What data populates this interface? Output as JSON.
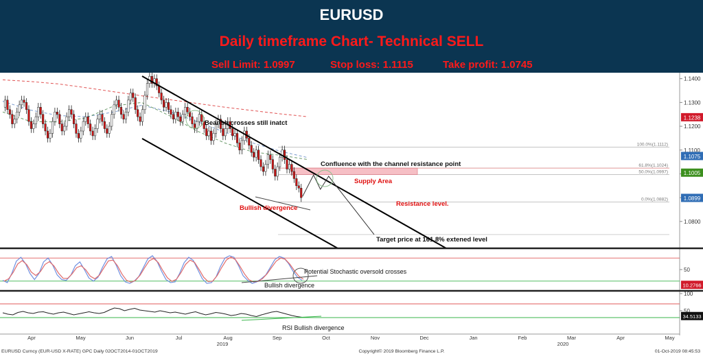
{
  "header": {
    "title": "EURUSD",
    "subtitle": "Daily timeframe Chart- Technical SELL",
    "sell_limit": "Sell Limit: 1.0997",
    "stop_loss": "Stop loss: 1.1115",
    "take_profit": "Take profit: 1.0745"
  },
  "colors": {
    "header_bg": "#0b3551",
    "header_title": "#ffffff",
    "header_red": "#ff1a1a",
    "bull_candle": "#ffffff",
    "bear_candle": "#d11414",
    "ma_red": "#e05050",
    "ma_blue": "#7799cc",
    "ma_green": "#6a9a6a",
    "supply_zone": "#f6b9bf",
    "tag_red": "#d11a2a",
    "tag_blue": "#2f6db5",
    "tag_green": "#3c8f1e",
    "stoch_k": "#6f8fe0",
    "stoch_d": "#e06a6a",
    "rsi_line": "#222222",
    "signal_green": "#39b54a"
  },
  "chart_data": [
    {
      "type": "candlestick",
      "timeframe": "Daily",
      "x": [
        "Apr",
        "May",
        "Jun",
        "Jul",
        "Aug",
        "Sep",
        "Oct",
        "Nov",
        "Dec",
        "Jan",
        "Feb",
        "Mar",
        "Apr",
        "May"
      ],
      "year_labels": [
        "2019",
        "2020"
      ],
      "ylim": [
        1.069,
        1.1425
      ],
      "yticks": [
        1.14,
        1.13,
        1.12,
        1.11,
        1.1,
        1.09,
        1.08
      ],
      "ytick_labels": [
        "1.1400",
        "1.1300",
        "1.1200",
        "1.1100",
        "1.1000",
        "1.0900",
        "1.0800"
      ],
      "close_series": [
        1.128,
        1.131,
        1.127,
        1.125,
        1.121,
        1.123,
        1.126,
        1.129,
        1.131,
        1.13,
        1.127,
        1.122,
        1.119,
        1.121,
        1.124,
        1.128,
        1.125,
        1.121,
        1.118,
        1.115,
        1.117,
        1.122,
        1.126,
        1.125,
        1.121,
        1.118,
        1.12,
        1.124,
        1.127,
        1.125,
        1.121,
        1.117,
        1.115,
        1.118,
        1.122,
        1.124,
        1.121,
        1.118,
        1.116,
        1.119,
        1.123,
        1.125,
        1.122,
        1.119,
        1.117,
        1.12,
        1.125,
        1.129,
        1.131,
        1.128,
        1.125,
        1.123,
        1.126,
        1.131,
        1.134,
        1.132,
        1.127,
        1.124,
        1.122,
        1.127,
        1.133,
        1.138,
        1.141,
        1.138,
        1.14,
        1.137,
        1.134,
        1.131,
        1.128,
        1.13,
        1.127,
        1.125,
        1.123,
        1.126,
        1.124,
        1.122,
        1.125,
        1.128,
        1.126,
        1.124,
        1.121,
        1.119,
        1.122,
        1.125,
        1.122,
        1.119,
        1.116,
        1.118,
        1.114,
        1.117,
        1.121,
        1.123,
        1.119,
        1.116,
        1.119,
        1.122,
        1.119,
        1.116,
        1.117,
        1.113,
        1.11,
        1.114,
        1.118,
        1.115,
        1.112,
        1.109,
        1.107,
        1.11,
        1.106,
        1.103,
        1.101,
        1.104,
        1.108,
        1.106,
        1.102,
        1.099,
        1.103,
        1.107,
        1.11,
        1.106,
        1.102,
        1.104,
        1.101,
        1.098,
        1.095,
        1.094,
        1.09
      ],
      "projection": [
        1.0905,
        1.0995,
        1.0935,
        1.099,
        1.0745
      ],
      "moving_averages": [
        {
          "color": "#e05050",
          "style": "dashed",
          "values": [
            1.1395,
            1.1388,
            1.1378,
            1.1362,
            1.1345,
            1.1328,
            1.1312,
            1.1296,
            1.128,
            1.1266,
            1.1252,
            1.124
          ]
        },
        {
          "color": "#7799cc",
          "style": "dashed",
          "values": [
            1.1305,
            1.1268,
            1.1245,
            1.124,
            1.126,
            1.1288,
            1.1262,
            1.122,
            1.1175,
            1.113,
            1.1095,
            1.1068
          ]
        },
        {
          "color": "#6a9a6a",
          "style": "dashed",
          "values": [
            1.126,
            1.122,
            1.1218,
            1.1235,
            1.1285,
            1.13,
            1.1245,
            1.118,
            1.113,
            1.1092,
            1.1078,
            1.106
          ]
        }
      ],
      "fib_levels": [
        {
          "label": "100.0%(1.1112)",
          "value": 1.1112
        },
        {
          "label": "61.8%(1.1024)",
          "value": 1.1024
        },
        {
          "label": "50.0%(1.0997)",
          "value": 1.0997
        },
        {
          "label": "0.0%(1.0882)",
          "value": 1.0882
        }
      ],
      "price_tags": [
        {
          "label": "1.1238",
          "value": 1.1238,
          "color": "#d11a2a"
        },
        {
          "label": "1.1075",
          "value": 1.1075,
          "color": "#2f6db5"
        },
        {
          "label": "1.1005",
          "value": 1.1005,
          "color": "#3c8f1e"
        },
        {
          "label": "1.0899",
          "value": 1.0899,
          "color": "#2f6db5"
        }
      ],
      "supply_zone": [
        1.0997,
        1.1024
      ],
      "target_level": 1.0745,
      "annotations": [
        "Bearish crosses still inatct",
        "Confluence with the channel resistance point",
        "Supply Area",
        "Resistance level.",
        "Bullish divergence",
        "Target price at 161.8% extened level"
      ]
    },
    {
      "type": "line",
      "indicator": "Stochastic",
      "ylim": [
        0,
        100
      ],
      "yticks": [
        50
      ],
      "ytick_labels": [
        "50"
      ],
      "levels": [
        80,
        20
      ],
      "value_tag": "10.2766",
      "k_values": [
        22,
        16,
        40,
        72,
        82,
        66,
        40,
        24,
        40,
        70,
        80,
        62,
        36,
        24,
        22,
        35,
        60,
        70,
        50,
        28,
        20,
        30,
        56,
        78,
        84,
        62,
        34,
        18,
        14,
        20,
        32,
        55,
        78,
        86,
        72,
        46,
        24,
        16,
        18,
        40,
        68,
        82,
        74,
        50,
        26,
        14,
        16,
        30,
        58,
        80,
        86,
        82,
        60,
        34,
        22,
        14,
        18,
        26,
        36,
        56,
        76,
        84,
        80,
        66,
        46,
        30,
        22
      ],
      "annotations": [
        "Potential Stochastic oversold crosses",
        "Bullish divergence"
      ]
    },
    {
      "type": "line",
      "indicator": "RSI",
      "ylim": [
        0,
        100
      ],
      "yticks": [
        100,
        50
      ],
      "ytick_labels": [
        "100",
        "50"
      ],
      "levels": [
        70,
        30
      ],
      "value_tag": "34.5133",
      "values": [
        44,
        40,
        38,
        45,
        48,
        44,
        42,
        46,
        47,
        43,
        40,
        44,
        46,
        42,
        38,
        41,
        44,
        47,
        44,
        42,
        45,
        52,
        58,
        56,
        50,
        54,
        57,
        52,
        50,
        48,
        46,
        50,
        47,
        44,
        46,
        43,
        40,
        44,
        47,
        42,
        38,
        41,
        45,
        43,
        40,
        36,
        38,
        42,
        40,
        36,
        33,
        38,
        42,
        46,
        48,
        44,
        40,
        36,
        33,
        31
      ],
      "annotations": [
        "RSI Bullish divergence"
      ]
    }
  ],
  "footer": {
    "left": "EURUSD Curncy (EUR-USD X-RATE) GPC  Daily 02OCT2014-01OCT2019",
    "center": "Copyright© 2019 Bloomberg Finance L.P.",
    "right": "01-Oct-2019 08:45:53"
  }
}
